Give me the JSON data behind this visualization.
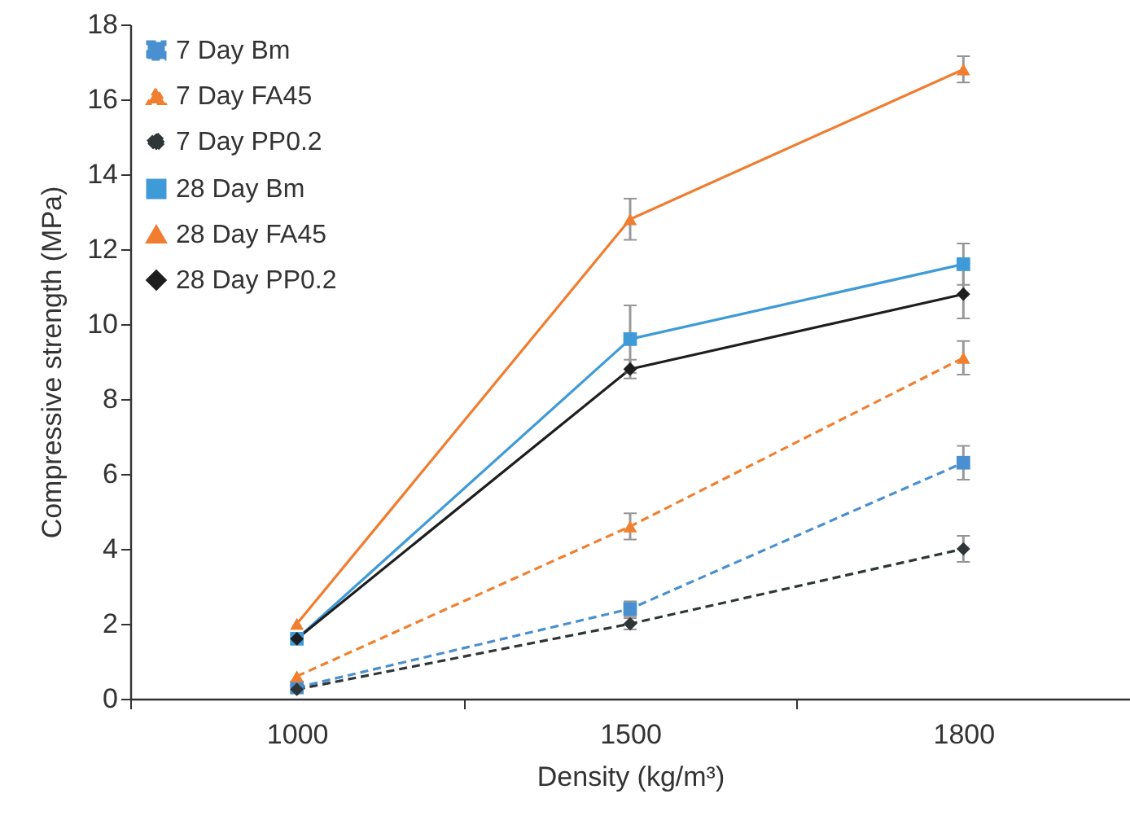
{
  "chart_data": {
    "type": "line",
    "xlabel": "Density (kg/m³)",
    "ylabel": "Compressive strength (MPa)",
    "categories": [
      "1000",
      "1500",
      "1800"
    ],
    "series": [
      {
        "name": "7 Day Bm",
        "color": "#4a90d0",
        "marker": "square",
        "line_style": "dashed",
        "values": [
          0.3,
          2.4,
          6.3
        ],
        "errors": [
          null,
          0.2,
          0.45
        ]
      },
      {
        "name": "7 Day FA45",
        "color": "#f08030",
        "marker": "triangle",
        "line_style": "dashed",
        "values": [
          0.6,
          4.6,
          9.1
        ],
        "errors": [
          null,
          0.35,
          0.45
        ]
      },
      {
        "name": "7 Day PP0.2",
        "color": "#2f3637",
        "marker": "diamond",
        "line_style": "dashed",
        "values": [
          0.25,
          2.0,
          4.0
        ],
        "errors": [
          null,
          0.15,
          0.35
        ]
      },
      {
        "name": "28 Day Bm",
        "color": "#3f9ad8",
        "marker": "square",
        "line_style": "solid",
        "values": [
          1.6,
          9.6,
          11.6
        ],
        "errors": [
          null,
          0.9,
          0.55
        ]
      },
      {
        "name": "28 Day FA45",
        "color": "#f07d30",
        "marker": "triangle",
        "line_style": "solid",
        "values": [
          2.0,
          12.8,
          16.8
        ],
        "errors": [
          null,
          0.55,
          0.35
        ]
      },
      {
        "name": "28 Day PP0.2",
        "color": "#1e1e1e",
        "marker": "diamond",
        "line_style": "solid",
        "values": [
          1.6,
          8.8,
          10.8
        ],
        "errors": [
          null,
          0.25,
          0.65
        ]
      }
    ],
    "ylim": [
      0,
      18
    ],
    "yticks": [
      0,
      2,
      4,
      6,
      8,
      10,
      12,
      14,
      16,
      18
    ],
    "grid": false,
    "legend": "top left"
  }
}
